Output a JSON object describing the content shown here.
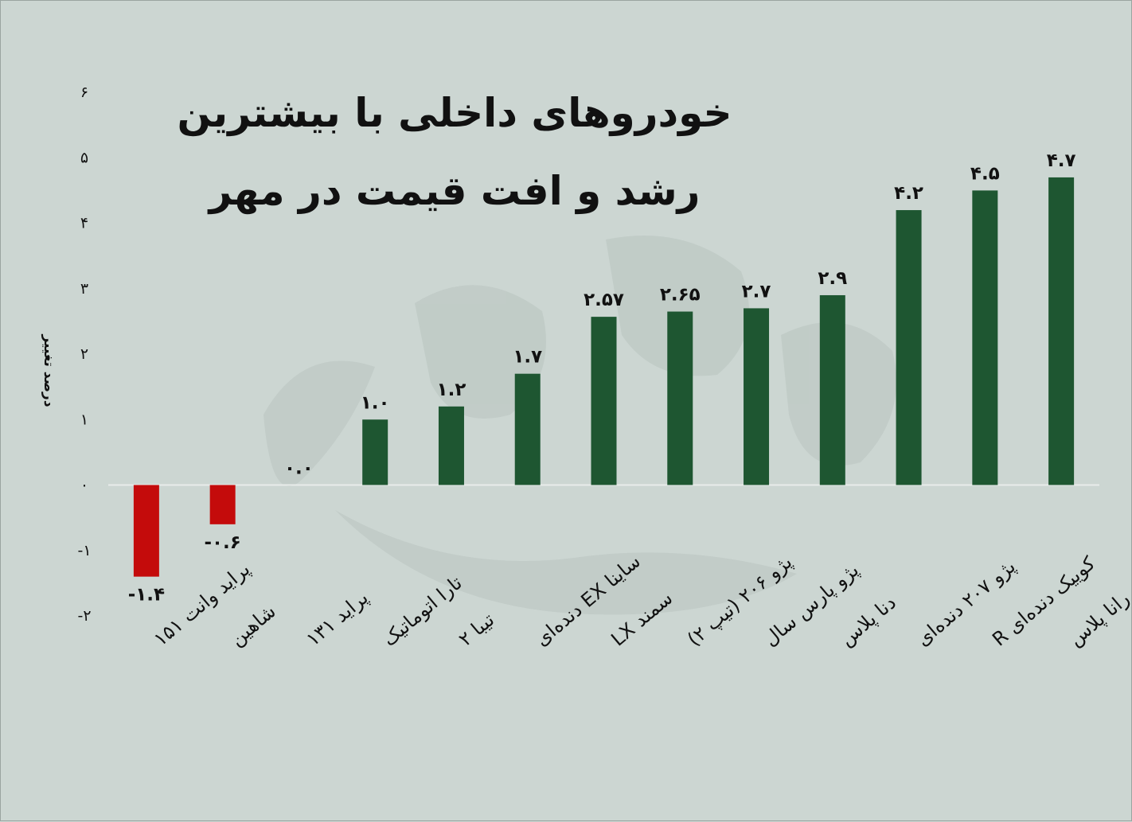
{
  "chart_data": {
    "type": "bar",
    "title_line1": "خودروهای داخلی با بیشترین",
    "title_line2": "رشد و افت قیمت در مهر",
    "ylabel": "درصد تغییر",
    "ylim": [
      -2,
      6
    ],
    "y_ticks": [
      "-۲",
      "-۱",
      "۰",
      "۱",
      "۲",
      "۳",
      "۴",
      "۵",
      "۶"
    ],
    "y_tick_values": [
      -2,
      -1,
      0,
      1,
      2,
      3,
      4,
      5,
      6
    ],
    "categories": [
      "پراید وانت ۱۵۱",
      "شاهین",
      "پراید ۱۳۱",
      "تارا اتوماتیک",
      "تیبا ۲",
      "ساینا EX دنده‌ای",
      "سمند LX",
      "پژو ۲۰۶ (تیپ ۲)",
      "پژو پارس سال",
      "دنا پلاس",
      "پژو ۲۰۷ دنده‌ای",
      "کوییک دنده‌ای R",
      "رانا پلاس"
    ],
    "values": [
      -1.4,
      -0.6,
      0.0,
      1.0,
      1.2,
      1.7,
      2.57,
      2.65,
      2.7,
      2.9,
      4.2,
      4.5,
      4.7
    ],
    "value_labels": [
      "-۱.۴",
      "-۰.۶",
      "۰.۰",
      "۱.۰",
      "۱.۲",
      "۱.۷",
      "۲.۵۷",
      "۲.۶۵",
      "۲.۷",
      "۲.۹",
      "۴.۲",
      "۴.۵",
      "۴.۷"
    ],
    "colors": {
      "positive": "#1e5631",
      "negative": "#c40b0b",
      "axis": "#e8ecea",
      "background": "#ccd6d2"
    },
    "grid": false,
    "legend": "none"
  }
}
